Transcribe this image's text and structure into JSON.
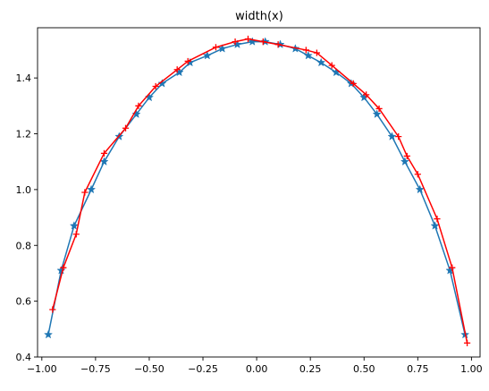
{
  "chart_data": {
    "type": "line",
    "title": "width(x)",
    "xlabel": "",
    "ylabel": "",
    "xlim": [
      -1.02,
      1.04
    ],
    "ylim": [
      0.4,
      1.58
    ],
    "xticks": [
      -1.0,
      -0.75,
      -0.5,
      -0.25,
      0.0,
      0.25,
      0.5,
      0.75,
      1.0
    ],
    "xtick_labels": [
      "−1.00",
      "−0.75",
      "−0.50",
      "−0.25",
      "0.00",
      "0.25",
      "0.50",
      "0.75",
      "1.00"
    ],
    "yticks": [
      0.4,
      0.6,
      0.8,
      1.0,
      1.2,
      1.4
    ],
    "ytick_labels": [
      "0.4",
      "0.6",
      "0.8",
      "1.0",
      "1.2",
      "1.4"
    ],
    "grid": false,
    "legend": "none",
    "series": [
      {
        "color": "#1f77b4",
        "marker": "star",
        "x": [
          -0.97,
          -0.91,
          -0.85,
          -0.77,
          -0.71,
          -0.64,
          -0.56,
          -0.5,
          -0.44,
          -0.36,
          -0.31,
          -0.23,
          -0.16,
          -0.09,
          -0.02,
          0.04,
          0.11,
          0.18,
          0.24,
          0.3,
          0.37,
          0.44,
          0.5,
          0.56,
          0.63,
          0.69,
          0.76,
          0.83,
          0.9,
          0.97
        ],
        "y": [
          0.48,
          0.71,
          0.87,
          1.0,
          1.1,
          1.19,
          1.27,
          1.33,
          1.38,
          1.42,
          1.455,
          1.48,
          1.505,
          1.52,
          1.53,
          1.53,
          1.52,
          1.505,
          1.48,
          1.455,
          1.42,
          1.38,
          1.33,
          1.27,
          1.19,
          1.1,
          1.0,
          0.87,
          0.71,
          0.48
        ]
      },
      {
        "color": "#ff0000",
        "marker": "plus",
        "x": [
          -0.95,
          -0.9,
          -0.84,
          -0.8,
          -0.71,
          -0.61,
          -0.55,
          -0.47,
          -0.37,
          -0.32,
          -0.19,
          -0.1,
          -0.04,
          0.03,
          0.1,
          0.23,
          0.28,
          0.35,
          0.45,
          0.51,
          0.57,
          0.66,
          0.7,
          0.75,
          0.84,
          0.91,
          0.98
        ],
        "y": [
          0.57,
          0.72,
          0.84,
          0.99,
          1.13,
          1.22,
          1.3,
          1.37,
          1.43,
          1.46,
          1.51,
          1.53,
          1.54,
          1.53,
          1.52,
          1.5,
          1.49,
          1.445,
          1.38,
          1.34,
          1.29,
          1.19,
          1.12,
          1.055,
          0.895,
          0.72,
          0.45
        ]
      }
    ]
  }
}
